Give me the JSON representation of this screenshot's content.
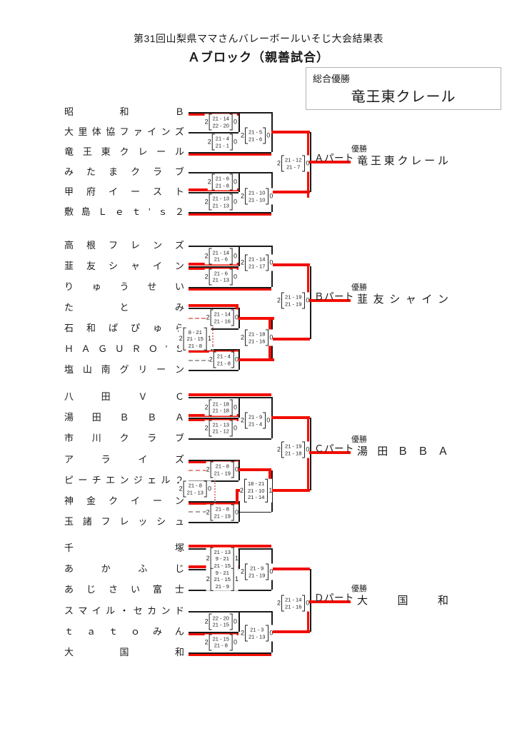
{
  "title": "第31回山梨県ママさんバレーボールいそじ大会結果表",
  "subtitle": "Ａブロック（親善試合）",
  "champion": {
    "label": "総合優勝",
    "name": "竜王東クレール"
  },
  "victory_label": "優勝",
  "colors": {
    "red": "#f20d00",
    "dash_red": "#e98a84",
    "dash_gray": "#a5a5a5",
    "line": "#1a1a1a"
  },
  "blocks": [
    {
      "id": "A",
      "part_label": "Ａパート",
      "winner": "竜王東クレール",
      "teams": [
        "昭和Ｂ",
        "大里体協ファインズ",
        "竜王東クレール",
        "みたまクラブ",
        "甲府イースト",
        "敷島Ｌｅｔ’ｓ２"
      ],
      "scores": {
        "t12": {
          "l": "2",
          "sets": [
            "21 - 14",
            "22 - 20"
          ],
          "r": "0"
        },
        "t23": {
          "l": "2",
          "sets": [
            "21 - 4",
            "21 - 1"
          ],
          "r": "0"
        },
        "tout": {
          "l": "2",
          "sets": [
            "21 - 5",
            "21 - 6"
          ],
          "r": "0"
        },
        "b12": {
          "l": "2",
          "sets": [
            "21 - 6",
            "21 - 8"
          ],
          "r": "0"
        },
        "b23": {
          "l": "2",
          "sets": [
            "21 - 13",
            "21 - 13"
          ],
          "r": "0"
        },
        "bout": {
          "l": "2",
          "sets": [
            "21 - 10",
            "21 - 10"
          ],
          "r": "0"
        },
        "final": {
          "l": "2",
          "sets": [
            "21 - 12",
            "21 - 7"
          ],
          "r": "0"
        }
      }
    },
    {
      "id": "B",
      "part_label": "Ｂパート",
      "winner": "韮友シャイン",
      "teams": [
        "高根フレンズ",
        "韮友シャイン",
        "りゅうせい",
        "たとみ",
        "石和ぱぴゅら",
        "ＨＡＧＵＲＯ’Ｓ",
        "塩山南グリーン"
      ],
      "scores": {
        "t12": {
          "l": "2",
          "sets": [
            "21 - 14",
            "21 - 6"
          ],
          "r": "0"
        },
        "t23": {
          "l": "2",
          "sets": [
            "21 - 6",
            "21 - 13"
          ],
          "r": "0"
        },
        "tout": {
          "l": "2",
          "sets": [
            "21 - 14",
            "21 - 17"
          ],
          "r": "0"
        },
        "b45": {
          "l": "2",
          "sets": [
            "21 - 14",
            "21 - 16"
          ],
          "r": "0"
        },
        "bleft": {
          "l": "2",
          "sets": [
            "8 - 21",
            "21 - 15",
            "21 - 8"
          ],
          "r": "1"
        },
        "b67": {
          "l": "2",
          "sets": [
            "21 - 4",
            "21 - 8"
          ],
          "r": "0"
        },
        "bsemi": {
          "l": "2",
          "sets": [
            "21 - 18",
            "21 - 16"
          ],
          "r": "0"
        },
        "final": {
          "l": "2",
          "sets": [
            "21 - 19",
            "21 - 19"
          ],
          "r": "0"
        }
      }
    },
    {
      "id": "C",
      "part_label": "Ｃパート",
      "winner": "湯田ＢＢＡ",
      "teams": [
        "八田ＶＣ",
        "湯田ＢＢＡ",
        "市川クラブ",
        "アライズ",
        "ピーチエンジェル２",
        "神金クイーン",
        "玉諸フレッシュ"
      ],
      "scores": {
        "t12": {
          "l": "2",
          "sets": [
            "21 - 18",
            "21 - 18"
          ],
          "r": "0"
        },
        "t23": {
          "l": "2",
          "sets": [
            "21 - 13",
            "21 - 12"
          ],
          "r": "0"
        },
        "tout": {
          "l": "2",
          "sets": [
            "21 - 9",
            "21 - 4"
          ],
          "r": "0"
        },
        "b45": {
          "l": "2",
          "sets": [
            "21 - 8",
            "21 - 19"
          ],
          "r": "0"
        },
        "bleft": {
          "l": "2",
          "sets": [
            "21 - 8",
            "21 - 13"
          ],
          "r": "0"
        },
        "b67": {
          "l": "2",
          "sets": [
            "21 - 8",
            "21 - 19"
          ],
          "r": "0"
        },
        "bsemi": {
          "l": "2",
          "sets": [
            "18 - 21",
            "21 - 10",
            "21 - 14"
          ],
          "r": "1"
        },
        "final": {
          "l": "2",
          "sets": [
            "21 - 19",
            "21 - 18"
          ],
          "r": "0"
        }
      }
    },
    {
      "id": "D",
      "part_label": "Ｄパート",
      "winner": "大国和",
      "teams": [
        "千塚",
        "あかふじ",
        "あじさい富士",
        "スマイル・セカンド",
        "ｔａｔｏみん",
        "大国和"
      ],
      "scores": {
        "t12": {
          "l": "2",
          "sets": [
            "21 - 13",
            "9 - 21",
            "21 - 15"
          ],
          "r": "1"
        },
        "t23": {
          "l": "2",
          "sets": [
            "9 - 21",
            "21 - 15",
            "21 - 9"
          ],
          "r": "1"
        },
        "tout": {
          "l": "2",
          "sets": [
            "21 - 9",
            "21 - 19"
          ],
          "r": "0"
        },
        "b12": {
          "l": "2",
          "sets": [
            "22 - 20",
            "21 - 15"
          ],
          "r": "0"
        },
        "b23": {
          "l": "2",
          "sets": [
            "21 - 15",
            "21 - 8"
          ],
          "r": "0"
        },
        "bout": {
          "l": "2",
          "sets": [
            "21 - 3",
            "21 - 13"
          ],
          "r": "0"
        },
        "final": {
          "l": "2",
          "sets": [
            "21 - 14",
            "21 - 16"
          ],
          "r": "0"
        }
      }
    }
  ]
}
